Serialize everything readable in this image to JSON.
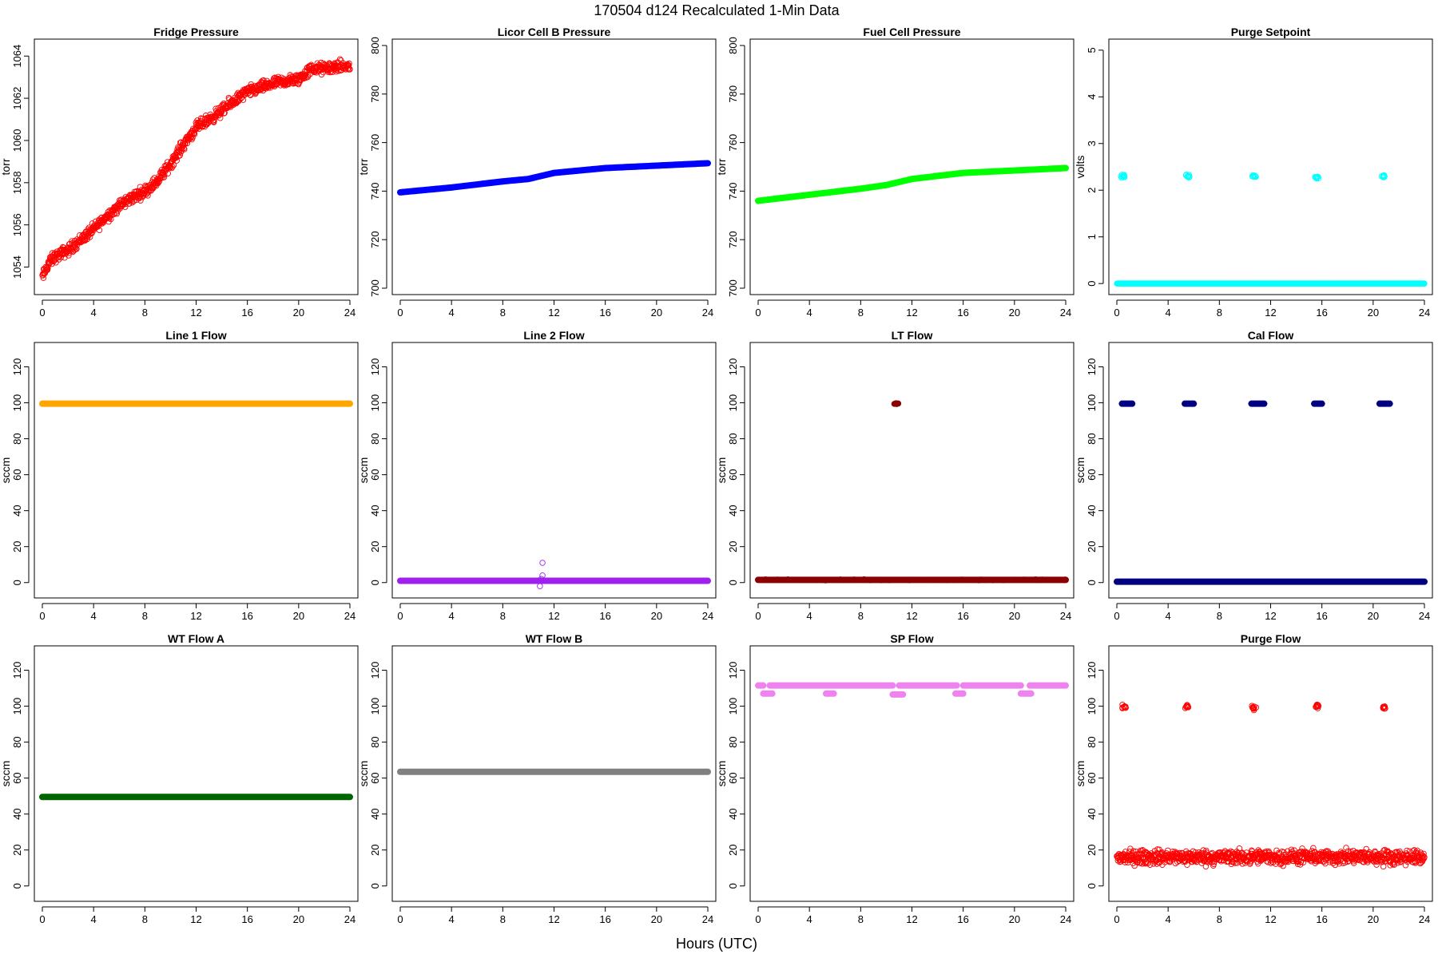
{
  "figure": {
    "title": "170504   d124   Recalculated 1-Min Data",
    "xlabel": "Hours (UTC)"
  },
  "chart_data": [
    {
      "id": "fridge-pressure",
      "type": "scatter",
      "title": "Fridge Pressure",
      "ylabel": "torr",
      "color": "#ff0000",
      "marker": "open-circle",
      "xlim": [
        0,
        24
      ],
      "ylim": [
        1053,
        1064.5
      ],
      "xticks": [
        0,
        4,
        8,
        12,
        16,
        20,
        24
      ],
      "yticks": [
        1054,
        1056,
        1058,
        1060,
        1062,
        1064
      ],
      "series": [
        {
          "name": "Fridge Pressure",
          "trend": [
            [
              0,
              1053.5
            ],
            [
              0.5,
              1054.2
            ],
            [
              1,
              1054.5
            ],
            [
              2,
              1054.8
            ],
            [
              3,
              1055.3
            ],
            [
              4,
              1055.8
            ],
            [
              5,
              1056.4
            ],
            [
              6,
              1056.9
            ],
            [
              7,
              1057.3
            ],
            [
              8,
              1057.6
            ],
            [
              9,
              1058.1
            ],
            [
              10,
              1058.9
            ],
            [
              11,
              1059.8
            ],
            [
              12,
              1060.6
            ],
            [
              13,
              1061.0
            ],
            [
              14,
              1061.4
            ],
            [
              15,
              1061.9
            ],
            [
              16,
              1062.3
            ],
            [
              17,
              1062.5
            ],
            [
              18,
              1062.7
            ],
            [
              19,
              1062.8
            ],
            [
              20,
              1062.9
            ],
            [
              21,
              1063.4
            ],
            [
              22,
              1063.4
            ],
            [
              23,
              1063.5
            ],
            [
              24,
              1063.5
            ]
          ],
          "jitter": 0.4
        }
      ]
    },
    {
      "id": "licor-cell-b-pressure",
      "type": "scatter",
      "title": "Licor Cell B Pressure",
      "ylabel": "torr",
      "color": "#0000ff",
      "marker": "filled-band",
      "xlim": [
        0,
        24
      ],
      "ylim": [
        700,
        800
      ],
      "xticks": [
        0,
        4,
        8,
        12,
        16,
        20,
        24
      ],
      "yticks": [
        700,
        720,
        740,
        760,
        780,
        800
      ],
      "series": [
        {
          "name": "Licor Cell B Pressure",
          "trend": [
            [
              0,
              739.5
            ],
            [
              4,
              741.5
            ],
            [
              8,
              744
            ],
            [
              10,
              745
            ],
            [
              12,
              747.5
            ],
            [
              16,
              749.5
            ],
            [
              20,
              750.5
            ],
            [
              24,
              751.5
            ]
          ],
          "jitter": 0
        }
      ]
    },
    {
      "id": "fuel-cell-pressure",
      "type": "scatter",
      "title": "Fuel Cell Pressure",
      "ylabel": "torr",
      "color": "#00ff00",
      "marker": "filled-band",
      "xlim": [
        0,
        24
      ],
      "ylim": [
        700,
        800
      ],
      "xticks": [
        0,
        4,
        8,
        12,
        16,
        20,
        24
      ],
      "yticks": [
        700,
        720,
        740,
        760,
        780,
        800
      ],
      "series": [
        {
          "name": "Fuel Cell Pressure",
          "trend": [
            [
              0,
              736
            ],
            [
              4,
              738.5
            ],
            [
              8,
              741
            ],
            [
              10,
              742.5
            ],
            [
              12,
              745
            ],
            [
              16,
              747.5
            ],
            [
              20,
              748.5
            ],
            [
              24,
              749.5
            ]
          ],
          "jitter": 0
        }
      ]
    },
    {
      "id": "purge-setpoint",
      "type": "scatter",
      "title": "Purge Setpoint",
      "ylabel": "volts",
      "color": "#00ffff",
      "marker": "open-circle",
      "xlim": [
        0,
        24
      ],
      "ylim": [
        -0.1,
        5.1
      ],
      "xticks": [
        0,
        4,
        8,
        12,
        16,
        20,
        24
      ],
      "yticks": [
        0,
        1,
        2,
        3,
        4,
        5
      ],
      "series": [
        {
          "name": "baseline",
          "trend": [
            [
              0,
              0
            ],
            [
              24,
              0
            ]
          ],
          "jitter": 0,
          "band": true
        },
        {
          "name": "purge events",
          "clusters": [
            [
              0.5,
              2.3
            ],
            [
              5.5,
              2.3
            ],
            [
              10.7,
              2.3
            ],
            [
              15.6,
              2.27
            ],
            [
              20.8,
              2.3
            ]
          ],
          "spread": 0.05
        }
      ]
    },
    {
      "id": "line-1-flow",
      "type": "scatter",
      "title": "Line 1 Flow",
      "ylabel": "sccm",
      "color": "#ffa500",
      "marker": "filled-band",
      "xlim": [
        0,
        24
      ],
      "ylim": [
        -5,
        130
      ],
      "xticks": [
        0,
        4,
        8,
        12,
        16,
        20,
        24
      ],
      "yticks": [
        0,
        20,
        40,
        60,
        80,
        100,
        120
      ],
      "series": [
        {
          "name": "Line 1 Flow",
          "trend": [
            [
              0,
              99.5
            ],
            [
              24,
              99.5
            ]
          ],
          "jitter": 0,
          "band": true
        }
      ]
    },
    {
      "id": "line-2-flow",
      "type": "scatter",
      "title": "Line 2 Flow",
      "ylabel": "sccm",
      "color": "#a020f0",
      "marker": "filled-band",
      "xlim": [
        0,
        24
      ],
      "ylim": [
        -5,
        130
      ],
      "xticks": [
        0,
        4,
        8,
        12,
        16,
        20,
        24
      ],
      "yticks": [
        0,
        20,
        40,
        60,
        80,
        100,
        120
      ],
      "series": [
        {
          "name": "Line 2 Flow",
          "trend": [
            [
              0,
              1
            ],
            [
              24,
              1
            ]
          ],
          "jitter": 0,
          "band": true
        },
        {
          "name": "outliers",
          "points": [
            [
              10.9,
              -2
            ],
            [
              11.0,
              2
            ],
            [
              11.1,
              4
            ],
            [
              11.1,
              11
            ]
          ]
        }
      ]
    },
    {
      "id": "lt-flow",
      "type": "scatter",
      "title": "LT Flow",
      "ylabel": "sccm",
      "color": "#8b0000",
      "marker": "filled-band",
      "xlim": [
        0,
        24
      ],
      "ylim": [
        -5,
        130
      ],
      "xticks": [
        0,
        4,
        8,
        12,
        16,
        20,
        24
      ],
      "yticks": [
        0,
        20,
        40,
        60,
        80,
        100,
        120
      ],
      "series": [
        {
          "name": "LT Flow",
          "trend": [
            [
              0,
              1.5
            ],
            [
              24,
              1.5
            ]
          ],
          "jitter": 0.6,
          "band": true
        },
        {
          "name": "spike",
          "clusters": [
            [
              10.8,
              99.5
            ]
          ],
          "spread": 0.5
        }
      ]
    },
    {
      "id": "cal-flow",
      "type": "scatter",
      "title": "Cal Flow",
      "ylabel": "sccm",
      "color": "#000080",
      "marker": "filled-band",
      "xlim": [
        0,
        24
      ],
      "ylim": [
        -5,
        130
      ],
      "xticks": [
        0,
        4,
        8,
        12,
        16,
        20,
        24
      ],
      "yticks": [
        0,
        20,
        40,
        60,
        80,
        100,
        120
      ],
      "series": [
        {
          "name": "Cal Flow",
          "trend": [
            [
              0,
              0.5
            ],
            [
              24,
              0.5
            ]
          ],
          "jitter": 0,
          "band": true
        },
        {
          "name": "cal events",
          "segments": [
            [
              0.4,
              1.2,
              99.5
            ],
            [
              5.3,
              6.0,
              99.5
            ],
            [
              10.5,
              11.5,
              99.5
            ],
            [
              15.4,
              16.0,
              99.5
            ],
            [
              20.5,
              21.3,
              99.5
            ]
          ]
        }
      ]
    },
    {
      "id": "wt-flow-a",
      "type": "scatter",
      "title": "WT Flow A",
      "ylabel": "sccm",
      "color": "#006400",
      "marker": "filled-band",
      "xlim": [
        0,
        24
      ],
      "ylim": [
        -5,
        130
      ],
      "xticks": [
        0,
        4,
        8,
        12,
        16,
        20,
        24
      ],
      "yticks": [
        0,
        20,
        40,
        60,
        80,
        100,
        120
      ],
      "series": [
        {
          "name": "WT Flow A",
          "trend": [
            [
              0,
              49.5
            ],
            [
              24,
              49.5
            ]
          ],
          "jitter": 0,
          "band": true
        }
      ]
    },
    {
      "id": "wt-flow-b",
      "type": "scatter",
      "title": "WT Flow B",
      "ylabel": "sccm",
      "color": "#808080",
      "marker": "filled-band",
      "xlim": [
        0,
        24
      ],
      "ylim": [
        -5,
        130
      ],
      "xticks": [
        0,
        4,
        8,
        12,
        16,
        20,
        24
      ],
      "yticks": [
        0,
        20,
        40,
        60,
        80,
        100,
        120
      ],
      "series": [
        {
          "name": "WT Flow B",
          "trend": [
            [
              0,
              63.5
            ],
            [
              24,
              63.5
            ]
          ],
          "jitter": 0,
          "band": true
        }
      ]
    },
    {
      "id": "sp-flow",
      "type": "scatter",
      "title": "SP Flow",
      "ylabel": "sccm",
      "color": "#ee82ee",
      "marker": "filled-band",
      "xlim": [
        0,
        24
      ],
      "ylim": [
        -5,
        130
      ],
      "xticks": [
        0,
        4,
        8,
        12,
        16,
        20,
        24
      ],
      "yticks": [
        0,
        20,
        40,
        60,
        80,
        100,
        120
      ],
      "series": [
        {
          "name": "SP Flow high",
          "segments": [
            [
              0,
              0.4,
              111.5
            ],
            [
              0.9,
              10.5,
              111.5
            ],
            [
              11.0,
              15.5,
              111.5
            ],
            [
              16.0,
              20.5,
              111.5
            ],
            [
              21.2,
              24,
              111.5
            ]
          ]
        },
        {
          "name": "SP Flow dips",
          "segments": [
            [
              0.4,
              1.1,
              107
            ],
            [
              5.3,
              5.9,
              107
            ],
            [
              10.5,
              11.3,
              106.5
            ],
            [
              15.4,
              16.0,
              107
            ],
            [
              20.5,
              21.3,
              107
            ]
          ]
        }
      ]
    },
    {
      "id": "purge-flow",
      "type": "scatter",
      "title": "Purge Flow",
      "ylabel": "sccm",
      "color": "#ff0000",
      "marker": "open-circle",
      "xlim": [
        0,
        24
      ],
      "ylim": [
        -5,
        130
      ],
      "xticks": [
        0,
        4,
        8,
        12,
        16,
        20,
        24
      ],
      "yticks": [
        0,
        20,
        40,
        60,
        80,
        100,
        120
      ],
      "series": [
        {
          "name": "Purge Flow",
          "trend": [
            [
              0,
              16
            ],
            [
              24,
              16
            ]
          ],
          "jitter": 6
        },
        {
          "name": "purge events",
          "clusters": [
            [
              0.6,
              99.5
            ],
            [
              5.5,
              99.5
            ],
            [
              10.7,
              99
            ],
            [
              15.6,
              100
            ],
            [
              20.8,
              99.5
            ]
          ],
          "spread": 1.5
        }
      ]
    }
  ]
}
